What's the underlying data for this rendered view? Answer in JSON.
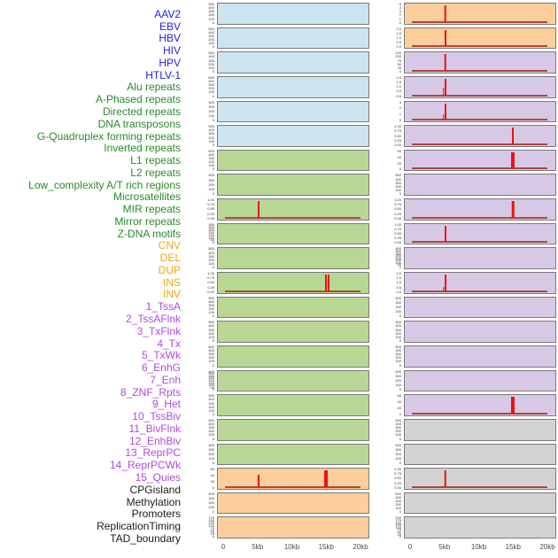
{
  "figure": {
    "background": "#ffffff",
    "category_label_colors": {
      "virus": "#2222dd",
      "repeat": "#2a8a2a",
      "sv": "#f2a416",
      "chromatin": "#ae4be0",
      "other": "#1a1a1a"
    },
    "panel_fill_colors": {
      "virus": "#cbe4ef",
      "repeat": "#b9d794",
      "sv": "#fcce9b",
      "chromatin": "#d7c9e6",
      "other": "#d3d3d3"
    },
    "panel_border_color": "#7a7a7a",
    "spike_color": "#ee1111",
    "baseline_color": "#b0463e"
  },
  "chart_data": {
    "type": "bar",
    "description": "44 feature-density tracks around two breakpoints (~5kb and ~15kb); panels arranged column-major in two columns of 22",
    "x_unit": "kb",
    "x_range_kb": [
      0,
      20
    ],
    "x_ticks": [
      "0",
      "5kb",
      "10kb",
      "15kb",
      "20kb"
    ],
    "x_tick_positions_pct": [
      0,
      25,
      50,
      75,
      100
    ],
    "legend_position": "none",
    "grid": false,
    "tracks": [
      {
        "name": "AAV2",
        "category": "virus",
        "yticks": [
          "500",
          "400",
          "300",
          "200",
          "100",
          "0"
        ],
        "baseline": false,
        "spikes": []
      },
      {
        "name": "EBV",
        "category": "virus",
        "yticks": [
          "500",
          "400",
          "300",
          "200",
          "100",
          "0"
        ],
        "baseline": false,
        "spikes": []
      },
      {
        "name": "HBV",
        "category": "virus",
        "yticks": [
          "500",
          "400",
          "300",
          "200",
          "100",
          "0"
        ],
        "baseline": false,
        "spikes": []
      },
      {
        "name": "HIV",
        "category": "virus",
        "yticks": [
          "500",
          "400",
          "300",
          "200",
          "100",
          "0"
        ],
        "baseline": false,
        "spikes": []
      },
      {
        "name": "HPV",
        "category": "virus",
        "yticks": [
          "400",
          "300",
          "200",
          "100",
          "0"
        ],
        "baseline": false,
        "spikes": []
      },
      {
        "name": "HTLV-1",
        "category": "virus",
        "yticks": [
          "500",
          "400",
          "300",
          "200",
          "100",
          "0"
        ],
        "baseline": false,
        "spikes": []
      },
      {
        "name": "Alu repeats",
        "category": "repeat",
        "yticks": [
          "500",
          "400",
          "300",
          "200",
          "100",
          "0"
        ],
        "baseline": false,
        "spikes": []
      },
      {
        "name": "A-Phased repeats",
        "category": "repeat",
        "yticks": [
          "400",
          "300",
          "200",
          "100",
          "0"
        ],
        "baseline": false,
        "spikes": []
      },
      {
        "name": "Directed repeats",
        "category": "repeat",
        "yticks": [
          "1.00",
          "0.75",
          "0.50",
          "0.25",
          "0.00"
        ],
        "baseline": true,
        "spikes": [
          {
            "kb": 5,
            "h": 1,
            "w": 2
          }
        ]
      },
      {
        "name": "DNA transposons",
        "category": "repeat",
        "yticks": [
          "350",
          "300",
          "250",
          "200",
          "150",
          "100",
          "50",
          "0"
        ],
        "baseline": false,
        "spikes": []
      },
      {
        "name": "G-Quadruplex forming repeats",
        "category": "repeat",
        "yticks": [
          "500",
          "400",
          "300",
          "200",
          "100",
          "0"
        ],
        "baseline": false,
        "spikes": []
      },
      {
        "name": "Inverted repeats",
        "category": "repeat",
        "yticks": [
          "1.00",
          "0.75",
          "0.50",
          "0.25",
          "0.00"
        ],
        "baseline": true,
        "spikes": [
          {
            "kb": 15,
            "h": 1,
            "w": 2
          },
          {
            "kb": 15.4,
            "h": 1,
            "w": 2
          }
        ]
      },
      {
        "name": "L1 repeats",
        "category": "repeat",
        "yticks": [
          "500",
          "400",
          "300",
          "200",
          "100",
          "0"
        ],
        "baseline": false,
        "spikes": []
      },
      {
        "name": "L2 repeats",
        "category": "repeat",
        "yticks": [
          "500",
          "400",
          "300",
          "200",
          "100",
          "0"
        ],
        "baseline": false,
        "spikes": []
      },
      {
        "name": "Low_complexity A/T rich regions",
        "category": "repeat",
        "yticks": [
          "500",
          "400",
          "300",
          "200",
          "100",
          "0"
        ],
        "baseline": false,
        "spikes": []
      },
      {
        "name": "Microsatellites",
        "category": "repeat",
        "yticks": [
          "400",
          "350",
          "300",
          "250",
          "200",
          "150",
          "100",
          "50",
          "0"
        ],
        "baseline": false,
        "spikes": []
      },
      {
        "name": "MIR repeats",
        "category": "repeat",
        "yticks": [
          "500",
          "400",
          "300",
          "200",
          "100",
          "0"
        ],
        "baseline": false,
        "spikes": []
      },
      {
        "name": "Mirror repeats",
        "category": "repeat",
        "yticks": [
          "500",
          "400",
          "300",
          "200",
          "100",
          "0"
        ],
        "baseline": false,
        "spikes": []
      },
      {
        "name": "Z-DNA motifs",
        "category": "repeat",
        "yticks": [
          "400",
          "300",
          "200",
          "100",
          "0"
        ],
        "baseline": false,
        "spikes": []
      },
      {
        "name": "CNV",
        "category": "sv",
        "yticks": [
          "60",
          "40",
          "20",
          "0"
        ],
        "baseline": true,
        "spikes": [
          {
            "kb": 5,
            "h": 0.75,
            "w": 2
          },
          {
            "kb": 15,
            "h": 1,
            "w": 4
          }
        ]
      },
      {
        "name": "DEL",
        "category": "sv",
        "yticks": [
          "400",
          "300",
          "200",
          "100",
          "0"
        ],
        "baseline": false,
        "spikes": []
      },
      {
        "name": "DUP",
        "category": "sv",
        "yticks": [
          "175",
          "150",
          "125",
          "100",
          "75",
          "50",
          "25",
          "0"
        ],
        "baseline": false,
        "spikes": []
      },
      {
        "name": "INS",
        "category": "sv",
        "yticks": [
          "5",
          "4",
          "3",
          "2",
          "1",
          "0"
        ],
        "baseline": true,
        "spikes": [
          {
            "kb": 5,
            "h": 1,
            "w": 2.5
          }
        ]
      },
      {
        "name": "INV",
        "category": "sv",
        "yticks": [
          "2.0",
          "1.5",
          "1.0",
          "0.5",
          "0.0"
        ],
        "baseline": true,
        "spikes": [
          {
            "kb": 5,
            "h": 1,
            "w": 2
          }
        ]
      },
      {
        "name": "1_TssA",
        "category": "chromatin",
        "yticks": [
          "125",
          "100",
          "75",
          "50",
          "25",
          "0"
        ],
        "baseline": true,
        "spikes": [
          {
            "kb": 5,
            "h": 1,
            "w": 2.5
          }
        ]
      },
      {
        "name": "2_TssAFlnk",
        "category": "chromatin",
        "yticks": [
          "2.0",
          "1.5",
          "1.0",
          "0.5",
          "0.0"
        ],
        "baseline": true,
        "spikes": [
          {
            "kb": 4.7,
            "h": 0.45,
            "w": 1.5
          },
          {
            "kb": 5,
            "h": 1,
            "w": 2
          }
        ]
      },
      {
        "name": "3_TxFlnk",
        "category": "chromatin",
        "yticks": [
          "3",
          "2",
          "1",
          "0"
        ],
        "baseline": true,
        "spikes": [
          {
            "kb": 4.7,
            "h": 0.33,
            "w": 1.5
          },
          {
            "kb": 5,
            "h": 1,
            "w": 2
          }
        ]
      },
      {
        "name": "4_Tx",
        "category": "chromatin",
        "yticks": [
          "1.00",
          "0.75",
          "0.50",
          "0.25",
          "0.00"
        ],
        "baseline": true,
        "spikes": [
          {
            "kb": 15,
            "h": 1,
            "w": 2
          }
        ]
      },
      {
        "name": "5_TxWk",
        "category": "chromatin",
        "yticks": [
          "60",
          "40",
          "20",
          "0"
        ],
        "baseline": true,
        "spikes": [
          {
            "kb": 15,
            "h": 1,
            "w": 4
          }
        ]
      },
      {
        "name": "6_EnhG",
        "category": "chromatin",
        "yticks": [
          "500",
          "400",
          "300",
          "200",
          "100",
          "0"
        ],
        "baseline": false,
        "spikes": []
      },
      {
        "name": "7_Enh",
        "category": "chromatin",
        "yticks": [
          "1.00",
          "0.75",
          "0.50",
          "0.25",
          "0.00"
        ],
        "baseline": true,
        "spikes": [
          {
            "kb": 15,
            "h": 1,
            "w": 2.5
          }
        ]
      },
      {
        "name": "8_ZNF_Rpts",
        "category": "chromatin",
        "yticks": [
          "1.00",
          "0.75",
          "0.50",
          "0.25",
          "0.00"
        ],
        "baseline": true,
        "spikes": [
          {
            "kb": 5,
            "h": 1,
            "w": 2
          }
        ]
      },
      {
        "name": "9_Het",
        "category": "chromatin",
        "yticks": [
          "400",
          "350",
          "300",
          "250",
          "200",
          "150",
          "100",
          "50",
          "0"
        ],
        "baseline": false,
        "spikes": []
      },
      {
        "name": "10_TssBiv",
        "category": "chromatin",
        "yticks": [
          "2.0",
          "1.5",
          "1.0",
          "0.5",
          "0.0"
        ],
        "baseline": true,
        "spikes": [
          {
            "kb": 4.7,
            "h": 0.25,
            "w": 1.5
          },
          {
            "kb": 5,
            "h": 1,
            "w": 2
          }
        ]
      },
      {
        "name": "11_BivFlnk",
        "category": "chromatin",
        "yticks": [
          "400",
          "300",
          "200",
          "100",
          "0"
        ],
        "baseline": false,
        "spikes": []
      },
      {
        "name": "12_EnhBiv",
        "category": "chromatin",
        "yticks": [
          "500",
          "400",
          "300",
          "200",
          "100",
          "0"
        ],
        "baseline": false,
        "spikes": []
      },
      {
        "name": "13_ReprPC",
        "category": "chromatin",
        "yticks": [
          "500",
          "400",
          "300",
          "200",
          "100",
          "0"
        ],
        "baseline": false,
        "spikes": []
      },
      {
        "name": "14_ReprPCWk",
        "category": "chromatin",
        "yticks": [
          "400",
          "300",
          "200",
          "100",
          "0"
        ],
        "baseline": false,
        "spikes": []
      },
      {
        "name": "15_Quies",
        "category": "chromatin",
        "yticks": [
          "60",
          "40",
          "20",
          "0"
        ],
        "baseline": true,
        "spikes": [
          {
            "kb": 15,
            "h": 1,
            "w": 4
          }
        ]
      },
      {
        "name": "CPGisland",
        "category": "other",
        "yticks": [
          "500",
          "400",
          "300",
          "200",
          "100",
          "0"
        ],
        "baseline": false,
        "spikes": []
      },
      {
        "name": "Methylation",
        "category": "other",
        "yticks": [
          "400",
          "300",
          "200",
          "100",
          "0"
        ],
        "baseline": false,
        "spikes": []
      },
      {
        "name": "Promoters",
        "category": "other",
        "yticks": [
          "1.00",
          "0.75",
          "0.50",
          "0.25",
          "0.00"
        ],
        "baseline": true,
        "spikes": [
          {
            "kb": 5,
            "h": 1,
            "w": 2.5
          }
        ]
      },
      {
        "name": "ReplicationTiming",
        "category": "other",
        "yticks": [
          "500",
          "400",
          "300",
          "200",
          "100",
          "0"
        ],
        "baseline": false,
        "spikes": []
      },
      {
        "name": "TAD_boundary",
        "category": "other",
        "yticks": [
          "200",
          "175",
          "150",
          "125",
          "100",
          "75",
          "50",
          "25",
          "0"
        ],
        "baseline": false,
        "spikes": []
      }
    ]
  }
}
